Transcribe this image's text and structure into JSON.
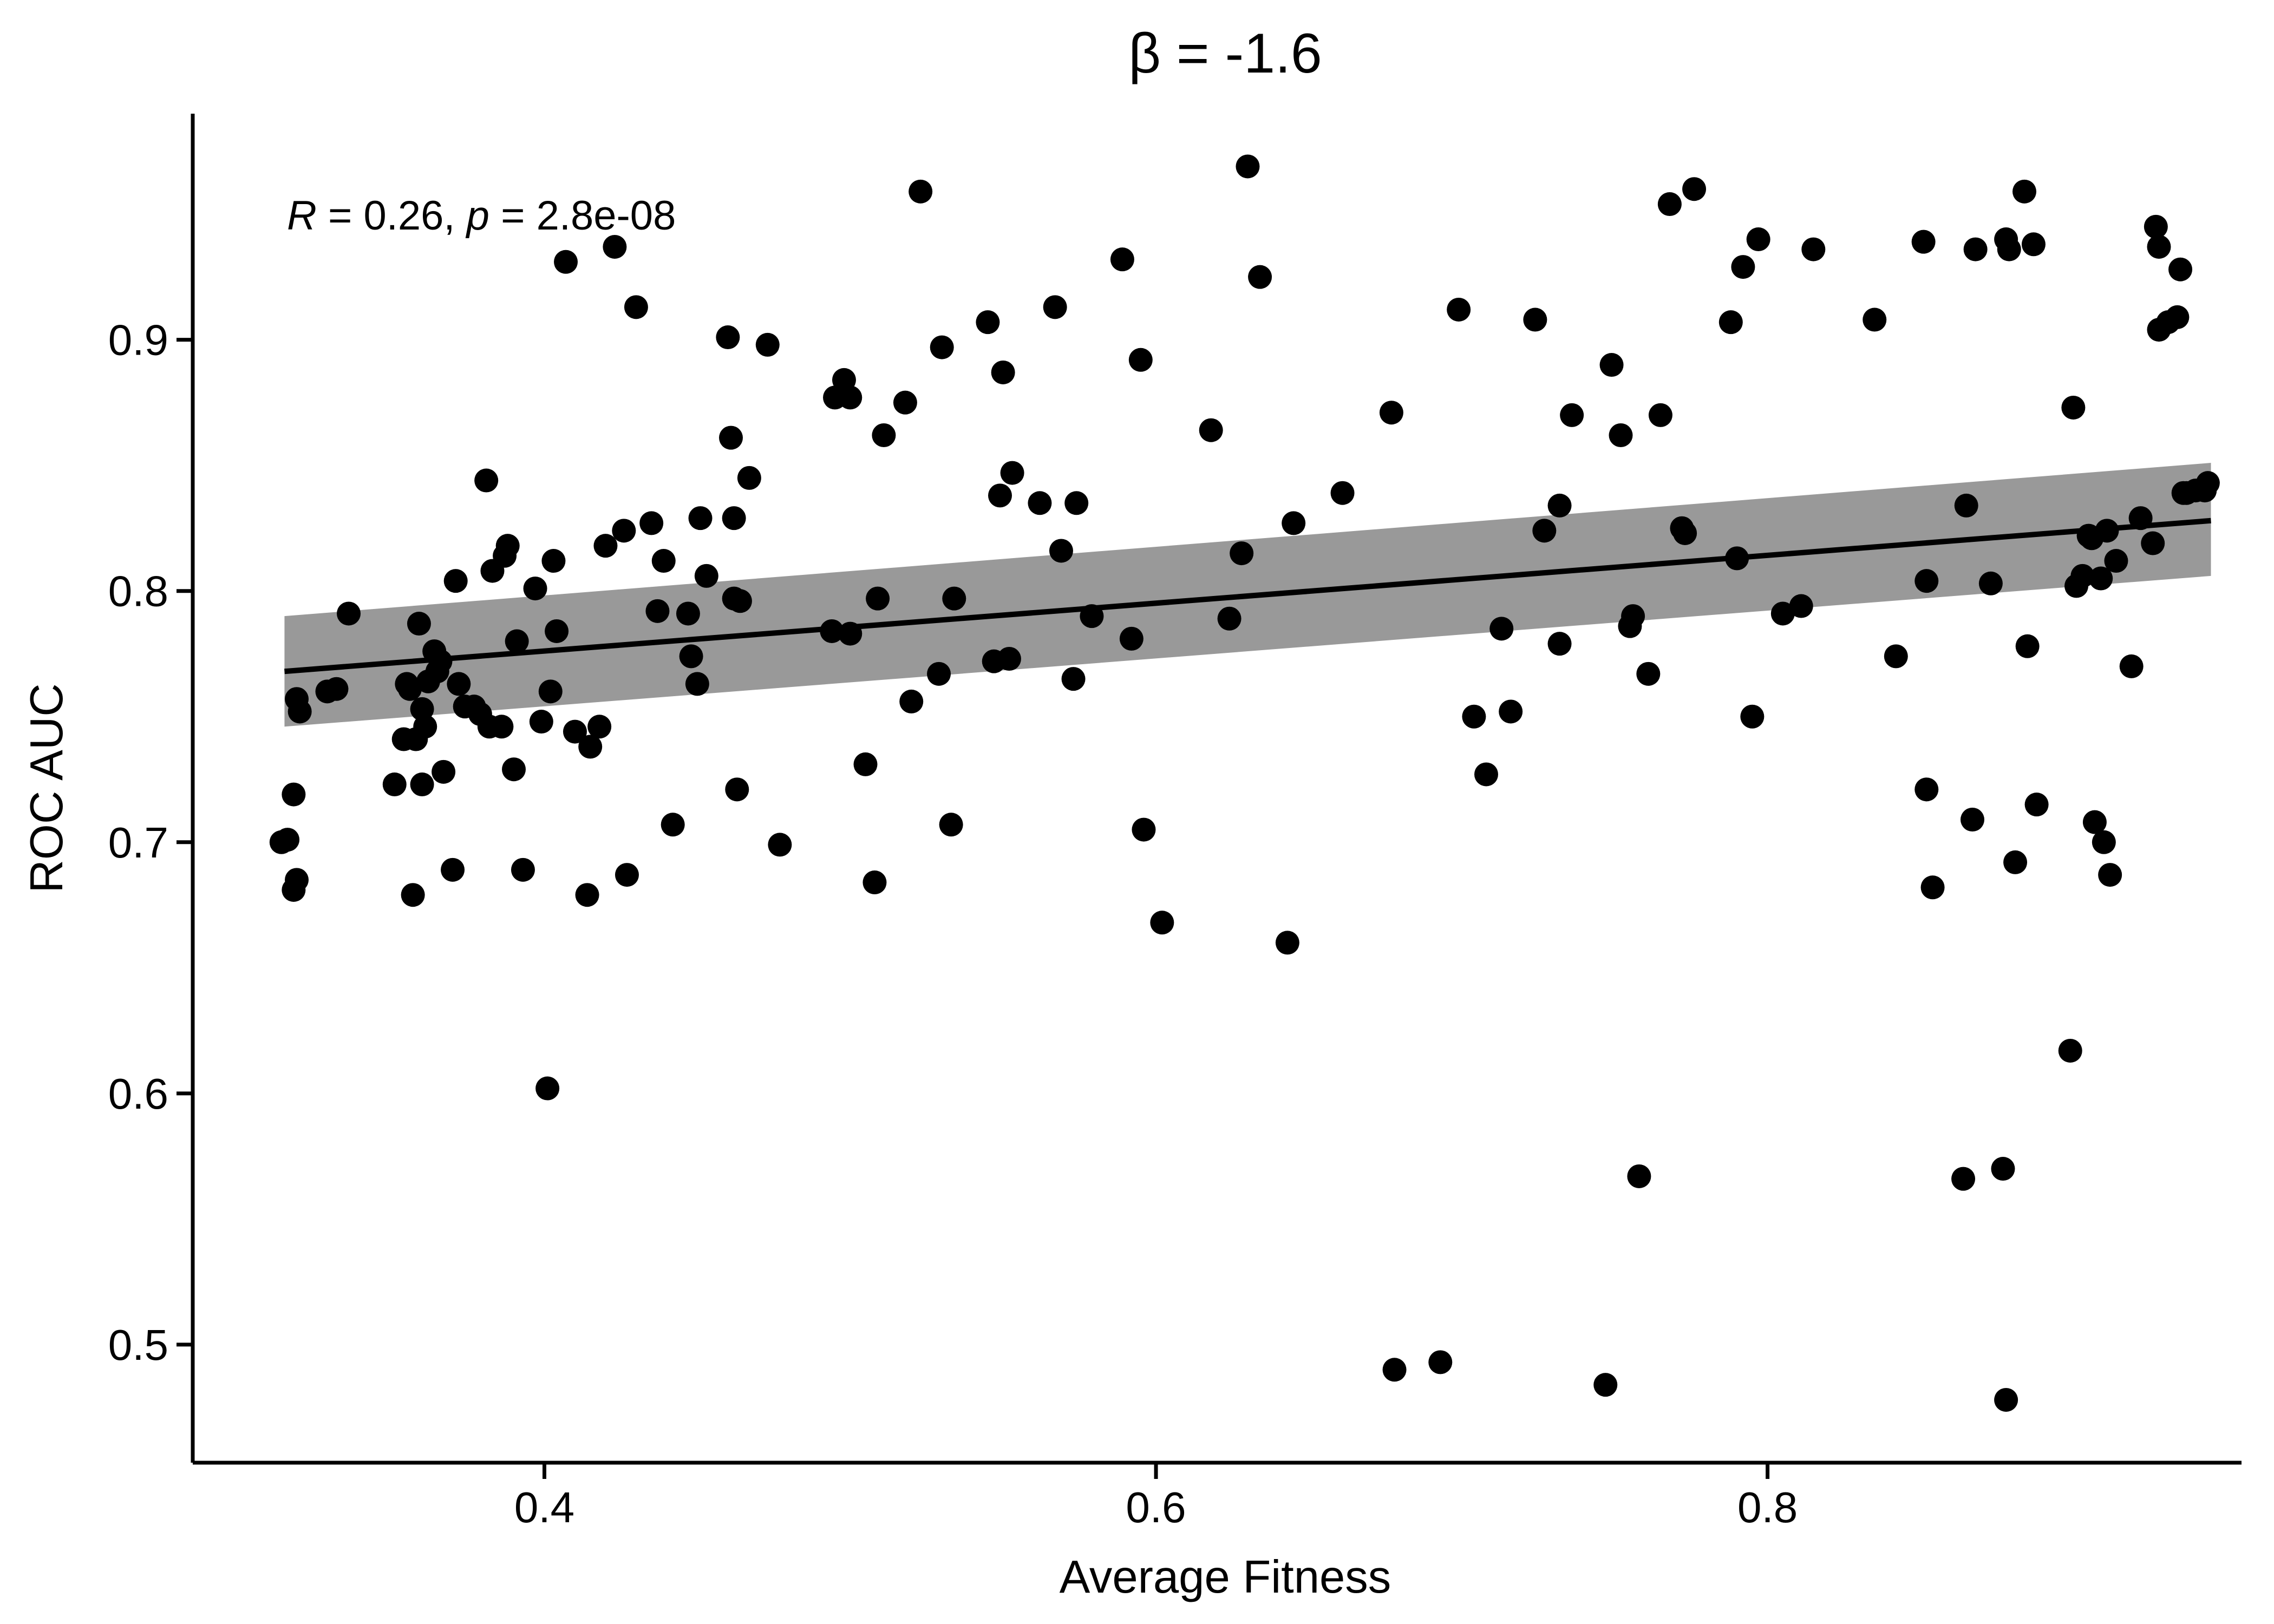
{
  "chart_data": {
    "type": "scatter",
    "title": "β = -1.6",
    "xlabel": "Average Fitness",
    "ylabel": "ROC AUC",
    "xlim": [
      0.285,
      0.955
    ],
    "ylim": [
      0.453,
      0.99
    ],
    "x_ticks": [
      {
        "value": 0.4,
        "label": "0.4"
      },
      {
        "value": 0.6,
        "label": "0.6"
      },
      {
        "value": 0.8,
        "label": "0.8"
      }
    ],
    "y_ticks": [
      {
        "value": 0.5,
        "label": "0.5"
      },
      {
        "value": 0.6,
        "label": "0.6"
      },
      {
        "value": 0.7,
        "label": "0.7"
      },
      {
        "value": 0.8,
        "label": "0.8"
      },
      {
        "value": 0.9,
        "label": "0.9"
      }
    ],
    "grid": false,
    "annotation": {
      "r_symbol": "R",
      "r_value": "= 0.26,",
      "p_symbol": "p",
      "p_value": "= 2.8e-08"
    },
    "regression": {
      "x": [
        0.315,
        0.945
      ],
      "y": [
        0.768,
        0.828
      ],
      "ci_lower": [
        0.746,
        0.806
      ],
      "ci_upper": [
        0.79,
        0.851
      ],
      "ci_color": "#999999"
    },
    "point_color": "#000000",
    "points": [
      [
        0.314,
        0.7
      ],
      [
        0.316,
        0.701
      ],
      [
        0.318,
        0.719
      ],
      [
        0.318,
        0.681
      ],
      [
        0.319,
        0.685
      ],
      [
        0.319,
        0.757
      ],
      [
        0.32,
        0.752
      ],
      [
        0.329,
        0.76
      ],
      [
        0.332,
        0.761
      ],
      [
        0.336,
        0.791
      ],
      [
        0.351,
        0.723
      ],
      [
        0.354,
        0.741
      ],
      [
        0.355,
        0.763
      ],
      [
        0.356,
        0.761
      ],
      [
        0.357,
        0.679
      ],
      [
        0.358,
        0.741
      ],
      [
        0.359,
        0.787
      ],
      [
        0.36,
        0.753
      ],
      [
        0.36,
        0.723
      ],
      [
        0.361,
        0.746
      ],
      [
        0.362,
        0.764
      ],
      [
        0.364,
        0.776
      ],
      [
        0.365,
        0.768
      ],
      [
        0.366,
        0.772
      ],
      [
        0.367,
        0.728
      ],
      [
        0.37,
        0.689
      ],
      [
        0.371,
        0.804
      ],
      [
        0.372,
        0.763
      ],
      [
        0.374,
        0.754
      ],
      [
        0.377,
        0.754
      ],
      [
        0.379,
        0.751
      ],
      [
        0.381,
        0.844
      ],
      [
        0.382,
        0.746
      ],
      [
        0.383,
        0.808
      ],
      [
        0.386,
        0.746
      ],
      [
        0.387,
        0.814
      ],
      [
        0.388,
        0.818
      ],
      [
        0.39,
        0.729
      ],
      [
        0.391,
        0.78
      ],
      [
        0.393,
        0.689
      ],
      [
        0.397,
        0.801
      ],
      [
        0.399,
        0.748
      ],
      [
        0.401,
        0.602
      ],
      [
        0.402,
        0.76
      ],
      [
        0.403,
        0.812
      ],
      [
        0.404,
        0.784
      ],
      [
        0.407,
        0.931
      ],
      [
        0.41,
        0.744
      ],
      [
        0.414,
        0.679
      ],
      [
        0.415,
        0.738
      ],
      [
        0.418,
        0.746
      ],
      [
        0.42,
        0.818
      ],
      [
        0.423,
        0.937
      ],
      [
        0.426,
        0.824
      ],
      [
        0.427,
        0.687
      ],
      [
        0.43,
        0.913
      ],
      [
        0.435,
        0.827
      ],
      [
        0.437,
        0.792
      ],
      [
        0.439,
        0.812
      ],
      [
        0.442,
        0.707
      ],
      [
        0.447,
        0.791
      ],
      [
        0.448,
        0.774
      ],
      [
        0.45,
        0.763
      ],
      [
        0.451,
        0.829
      ],
      [
        0.453,
        0.806
      ],
      [
        0.46,
        0.901
      ],
      [
        0.461,
        0.861
      ],
      [
        0.462,
        0.797
      ],
      [
        0.462,
        0.829
      ],
      [
        0.463,
        0.721
      ],
      [
        0.464,
        0.796
      ],
      [
        0.467,
        0.845
      ],
      [
        0.473,
        0.898
      ],
      [
        0.477,
        0.699
      ],
      [
        0.494,
        0.784
      ],
      [
        0.495,
        0.877
      ],
      [
        0.498,
        0.884
      ],
      [
        0.5,
        0.783
      ],
      [
        0.5,
        0.877
      ],
      [
        0.505,
        0.731
      ],
      [
        0.508,
        0.684
      ],
      [
        0.509,
        0.797
      ],
      [
        0.511,
        0.862
      ],
      [
        0.518,
        0.875
      ],
      [
        0.52,
        0.756
      ],
      [
        0.523,
        0.959
      ],
      [
        0.529,
        0.767
      ],
      [
        0.53,
        0.897
      ],
      [
        0.533,
        0.707
      ],
      [
        0.534,
        0.797
      ],
      [
        0.545,
        0.907
      ],
      [
        0.547,
        0.772
      ],
      [
        0.549,
        0.838
      ],
      [
        0.55,
        0.887
      ],
      [
        0.552,
        0.773
      ],
      [
        0.553,
        0.847
      ],
      [
        0.562,
        0.835
      ],
      [
        0.567,
        0.913
      ],
      [
        0.569,
        0.816
      ],
      [
        0.573,
        0.765
      ],
      [
        0.574,
        0.835
      ],
      [
        0.579,
        0.79
      ],
      [
        0.589,
        0.932
      ],
      [
        0.592,
        0.781
      ],
      [
        0.595,
        0.892
      ],
      [
        0.596,
        0.705
      ],
      [
        0.602,
        0.668
      ],
      [
        0.618,
        0.864
      ],
      [
        0.624,
        0.789
      ],
      [
        0.628,
        0.815
      ],
      [
        0.63,
        0.969
      ],
      [
        0.634,
        0.925
      ],
      [
        0.643,
        0.66
      ],
      [
        0.645,
        0.827
      ],
      [
        0.661,
        0.839
      ],
      [
        0.677,
        0.871
      ],
      [
        0.678,
        0.49
      ],
      [
        0.693,
        0.493
      ],
      [
        0.699,
        0.912
      ],
      [
        0.704,
        0.75
      ],
      [
        0.708,
        0.727
      ],
      [
        0.713,
        0.785
      ],
      [
        0.716,
        0.752
      ],
      [
        0.724,
        0.908
      ],
      [
        0.727,
        0.824
      ],
      [
        0.732,
        0.834
      ],
      [
        0.732,
        0.779
      ],
      [
        0.736,
        0.87
      ],
      [
        0.747,
        0.484
      ],
      [
        0.749,
        0.89
      ],
      [
        0.752,
        0.862
      ],
      [
        0.755,
        0.786
      ],
      [
        0.756,
        0.79
      ],
      [
        0.758,
        0.567
      ],
      [
        0.761,
        0.767
      ],
      [
        0.765,
        0.87
      ],
      [
        0.768,
        0.954
      ],
      [
        0.772,
        0.825
      ],
      [
        0.773,
        0.823
      ],
      [
        0.776,
        0.96
      ],
      [
        0.788,
        0.907
      ],
      [
        0.79,
        0.813
      ],
      [
        0.792,
        0.929
      ],
      [
        0.795,
        0.75
      ],
      [
        0.797,
        0.94
      ],
      [
        0.805,
        0.791
      ],
      [
        0.811,
        0.794
      ],
      [
        0.815,
        0.936
      ],
      [
        0.835,
        0.908
      ],
      [
        0.842,
        0.774
      ],
      [
        0.851,
        0.939
      ],
      [
        0.852,
        0.721
      ],
      [
        0.852,
        0.804
      ],
      [
        0.854,
        0.682
      ],
      [
        0.864,
        0.566
      ],
      [
        0.865,
        0.834
      ],
      [
        0.867,
        0.709
      ],
      [
        0.868,
        0.936
      ],
      [
        0.873,
        0.803
      ],
      [
        0.877,
        0.57
      ],
      [
        0.878,
        0.94
      ],
      [
        0.878,
        0.478
      ],
      [
        0.879,
        0.936
      ],
      [
        0.881,
        0.692
      ],
      [
        0.884,
        0.959
      ],
      [
        0.885,
        0.778
      ],
      [
        0.887,
        0.938
      ],
      [
        0.888,
        0.715
      ],
      [
        0.899,
        0.617
      ],
      [
        0.9,
        0.873
      ],
      [
        0.901,
        0.802
      ],
      [
        0.903,
        0.806
      ],
      [
        0.905,
        0.822
      ],
      [
        0.906,
        0.821
      ],
      [
        0.907,
        0.708
      ],
      [
        0.909,
        0.805
      ],
      [
        0.91,
        0.7
      ],
      [
        0.911,
        0.824
      ],
      [
        0.912,
        0.687
      ],
      [
        0.914,
        0.812
      ],
      [
        0.919,
        0.77
      ],
      [
        0.922,
        0.829
      ],
      [
        0.926,
        0.819
      ],
      [
        0.927,
        0.945
      ],
      [
        0.928,
        0.937
      ],
      [
        0.928,
        0.904
      ],
      [
        0.931,
        0.907
      ],
      [
        0.934,
        0.909
      ],
      [
        0.935,
        0.928
      ],
      [
        0.936,
        0.839
      ],
      [
        0.937,
        0.839
      ],
      [
        0.94,
        0.84
      ],
      [
        0.943,
        0.84
      ],
      [
        0.944,
        0.843
      ]
    ]
  }
}
